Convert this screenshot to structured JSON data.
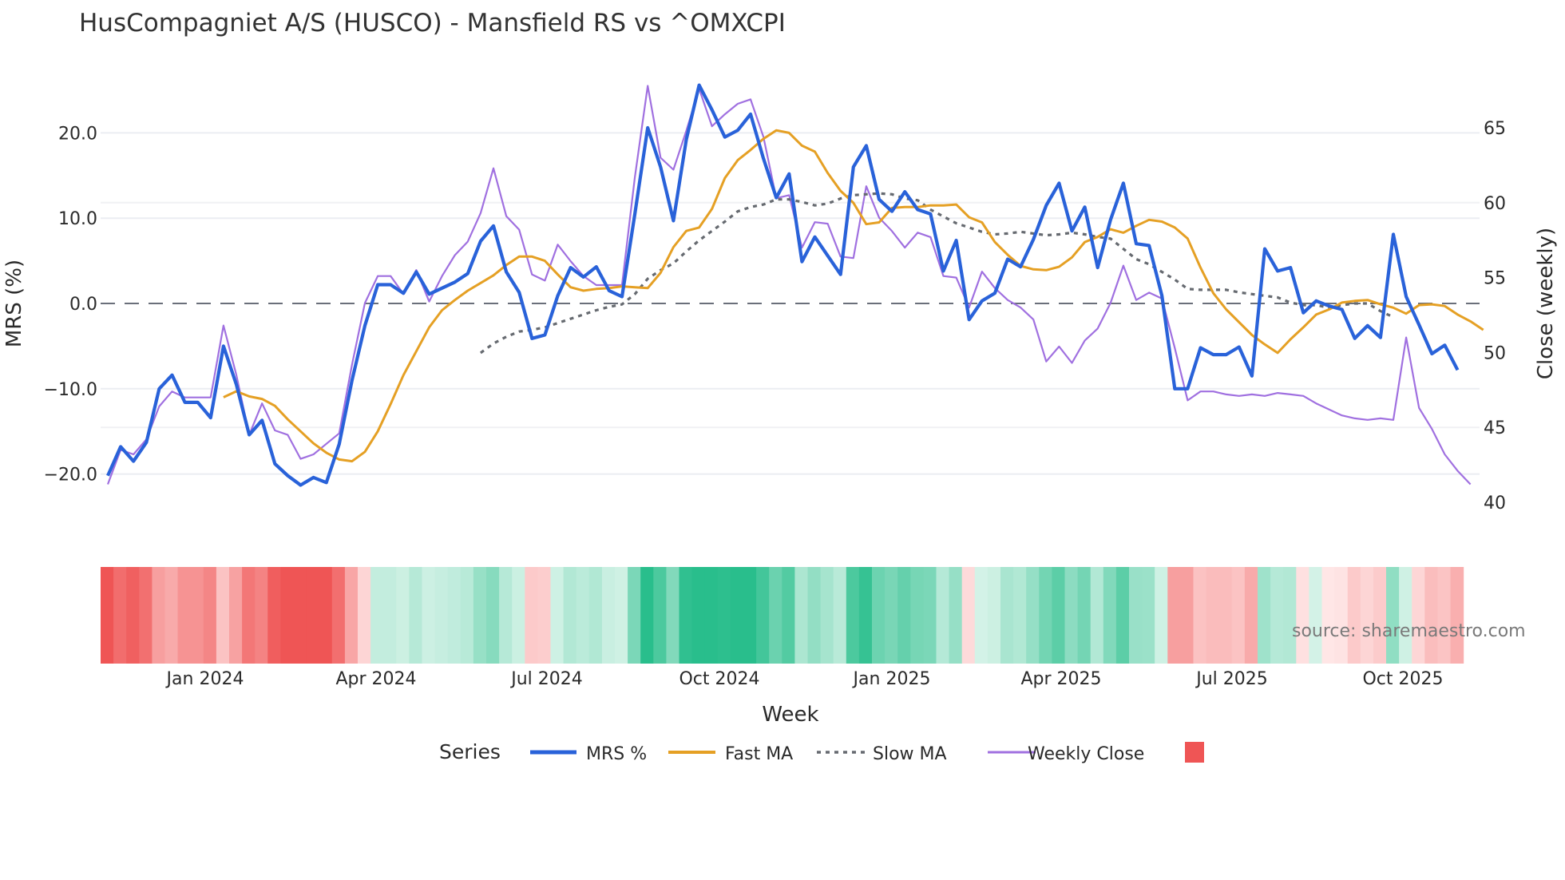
{
  "title": "HusCompagniet A/S (HUSCO) - Mansfield RS vs ^OMXCPI",
  "source": "source: sharemaestro.com",
  "legend": {
    "title": "Series",
    "items": [
      {
        "label": "MRS %",
        "color": "#2962d9",
        "style": "solid"
      },
      {
        "label": "Fast MA",
        "color": "#e5a024",
        "style": "solid"
      },
      {
        "label": "Slow MA",
        "color": "#666a70",
        "style": "dot"
      },
      {
        "label": "Weekly Close",
        "color": "#a070e0",
        "style": "solid"
      },
      {
        "label": "",
        "color": "#ef5555",
        "style": "box"
      }
    ]
  },
  "chart_data": {
    "type": "line",
    "title": "HusCompagniet A/S (HUSCO) - Mansfield RS vs ^OMXCPI",
    "xlabel": "Week",
    "ylabel": "MRS (%)",
    "y2label": "Close (weekly)",
    "ylim": [
      -24,
      28
    ],
    "y2lim": [
      38.7,
      68.5
    ],
    "yticks": [
      "20.0",
      "10.0",
      "0.0",
      "−10.0",
      "−20.0"
    ],
    "y2ticks": [
      "65",
      "60",
      "55",
      "50",
      "45",
      "40"
    ],
    "xticks": [
      "Jan 2024",
      "Apr 2024",
      "Jul 2024",
      "Oct 2024",
      "Jan 2025",
      "Apr 2025",
      "Jul 2025",
      "Oct 2025"
    ],
    "grid": true,
    "legend_position": "bottom",
    "zero_line": 0,
    "series": [
      {
        "name": "MRS %",
        "axis": "y",
        "start": 0,
        "values": [
          -20.2,
          -16.8,
          -18.5,
          -16.3,
          -10,
          -8.4,
          -11.6,
          -11.6,
          -13.4,
          -5,
          -9.5,
          -15.4,
          -13.7,
          -18.8,
          -20.2,
          -21.3,
          -20.4,
          -21,
          -16.5,
          -9,
          -2.6,
          2.2,
          2.2,
          1.2,
          3.7,
          1.1,
          1.8,
          2.5,
          3.5,
          7.3,
          9.1,
          3.7,
          1.3,
          -4.1,
          -3.7,
          0.9,
          4.2,
          3.1,
          4.3,
          1.5,
          0.8,
          10.5,
          20.6,
          16,
          9.7,
          19.2,
          25.6,
          22.7,
          19.5,
          20.3,
          22.2,
          17,
          12.4,
          15.2,
          4.9,
          7.8,
          5.6,
          3.4,
          16,
          18.5,
          12.2,
          10.8,
          13.1,
          11,
          10.5,
          3.8,
          7.4,
          -1.9,
          0.3,
          1.2,
          5.2,
          4.3,
          7.5,
          11.5,
          14.1,
          8.5,
          11.3,
          4.2,
          9.8,
          14.1,
          7,
          6.8,
          0.9,
          -10,
          -10,
          -5.2,
          -6,
          -6,
          -5.1,
          -8.5,
          6.4,
          3.8,
          4.2,
          -1.1,
          0.3,
          -0.3,
          -0.7,
          -4.1,
          -2.6,
          -4,
          8.1,
          0.8,
          -2.5,
          -5.9,
          -4.9,
          -7.8
        ]
      },
      {
        "name": "Fast MA",
        "axis": "y",
        "start": 9,
        "values": [
          -11,
          -10.3,
          -10.9,
          -11.2,
          -12,
          -13.6,
          -15,
          -16.4,
          -17.5,
          -18.3,
          -18.5,
          -17.4,
          -15,
          -11.8,
          -8.4,
          -5.6,
          -2.8,
          -0.8,
          0.4,
          1.5,
          2.4,
          3.3,
          4.5,
          5.5,
          5.5,
          5,
          3.4,
          1.9,
          1.5,
          1.7,
          1.8,
          2,
          1.9,
          1.8,
          3.6,
          6.6,
          8.5,
          8.9,
          11.1,
          14.7,
          16.8,
          18,
          19.3,
          20.3,
          20,
          18.5,
          17.8,
          15.3,
          13.2,
          11.8,
          9.3,
          9.5,
          11.2,
          11.3,
          11.3,
          11.5,
          11.5,
          11.6,
          10.1,
          9.5,
          7.2,
          5.7,
          4.4,
          4,
          3.9,
          4.3,
          5.4,
          7.2,
          7.8,
          8.7,
          8.3,
          9.1,
          9.8,
          9.6,
          8.9,
          7.6,
          4.2,
          1.2,
          -0.7,
          -2.2,
          -3.7,
          -4.8,
          -5.8,
          -4.2,
          -2.8,
          -1.3,
          -0.7,
          0.1,
          0.3,
          0.4,
          -0.1,
          -0.5,
          -1.2,
          -0.2,
          -0.1,
          -0.3,
          -1.3,
          -2.1,
          -3.1
        ]
      },
      {
        "name": "Slow MA",
        "axis": "y",
        "start": 29,
        "values": [
          -5.8,
          -4.7,
          -3.9,
          -3.3,
          -3.1,
          -2.8,
          -2.3,
          -1.8,
          -1.3,
          -0.8,
          -0.4,
          -0.1,
          1.1,
          2.9,
          3.9,
          4.7,
          6.1,
          7.4,
          8.5,
          9.6,
          10.8,
          11.3,
          11.6,
          12.2,
          12.2,
          11.9,
          11.5,
          11.7,
          12.3,
          12.7,
          12.8,
          12.9,
          12.8,
          12.3,
          12.1,
          11,
          10.2,
          9.4,
          8.9,
          8.4,
          8.1,
          8.2,
          8.4,
          8.2,
          8,
          8.1,
          8.3,
          8.1,
          7.8,
          7.6,
          6.4,
          5.2,
          4.6,
          3.7,
          2.8,
          1.7,
          1.6,
          1.6,
          1.6,
          1.3,
          1.1,
          0.9,
          0.7,
          0.1,
          -0.2,
          -0.2,
          -0.5,
          -0.2,
          0,
          0,
          -0.9,
          -1.6
        ]
      },
      {
        "name": "Weekly Close",
        "axis": "y2",
        "start": 0,
        "values": [
          41.2,
          43.5,
          43.2,
          44.2,
          46.4,
          47.4,
          47,
          47,
          47,
          51.8,
          48.5,
          44.5,
          46.6,
          44.8,
          44.5,
          42.9,
          43.2,
          43.9,
          44.6,
          49.2,
          53.3,
          55.1,
          55.1,
          53.9,
          55.5,
          53.4,
          55.1,
          56.5,
          57.4,
          59.3,
          62.3,
          59.1,
          58.2,
          55.2,
          54.8,
          57.2,
          56.1,
          55.1,
          54.5,
          54.5,
          54.5,
          61.7,
          67.8,
          63,
          62.2,
          64.8,
          67.6,
          65.1,
          65.9,
          66.6,
          66.9,
          64.4,
          60.3,
          60.5,
          57,
          58.7,
          58.6,
          56.4,
          56.3,
          61.1,
          59,
          58.1,
          57,
          58,
          57.7,
          55.1,
          55,
          53,
          55.4,
          54.3,
          53.5,
          53,
          52.2,
          49.4,
          50.4,
          49.3,
          50.8,
          51.6,
          53.3,
          55.8,
          53.5,
          54,
          53.6,
          50.3,
          46.8,
          47.4,
          47.4,
          47.2,
          47.1,
          47.2,
          47.1,
          47.3,
          47.2,
          47.1,
          46.6,
          46.2,
          45.8,
          45.6,
          45.5,
          45.6,
          45.5,
          51,
          46.3,
          44.9,
          43.2,
          42.1,
          41.2
        ]
      }
    ],
    "heatmap": {
      "description": "MRS strength band per week: red = negative, green = positive",
      "basis": "MRS %"
    }
  }
}
